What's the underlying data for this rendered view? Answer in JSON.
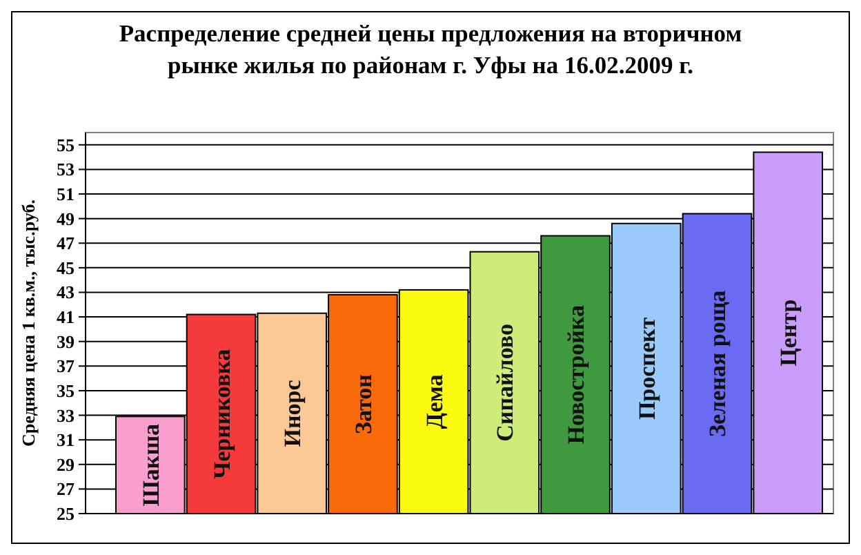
{
  "chart_data": {
    "type": "bar",
    "title": "Распределение средней цены предложения на вторичном\nрынке жилья по районам г. Уфы на 16.02.2009 г.",
    "ylabel": "Средняя цена 1 кв.м., тыс.руб.",
    "categories": [
      "Шакша",
      "Черниковка",
      "Инорс",
      "Затон",
      "Дема",
      "Сипайлово",
      "Новостройка",
      "Проспект",
      "Зеленая роща",
      "Центр"
    ],
    "values": [
      32.9,
      41.2,
      41.3,
      42.8,
      43.2,
      46.3,
      47.6,
      48.6,
      49.4,
      54.4
    ],
    "colors": [
      "#f99fcf",
      "#f43a3a",
      "#fcc896",
      "#fb6a0a",
      "#fbfb10",
      "#cdec7a",
      "#3f9a3f",
      "#9acafa",
      "#6a6af2",
      "#c89cf8"
    ],
    "ylim": [
      25,
      56
    ],
    "yticks": [
      25,
      27,
      29,
      31,
      33,
      35,
      37,
      39,
      41,
      43,
      45,
      47,
      49,
      51,
      53,
      55
    ],
    "grid": "y"
  }
}
